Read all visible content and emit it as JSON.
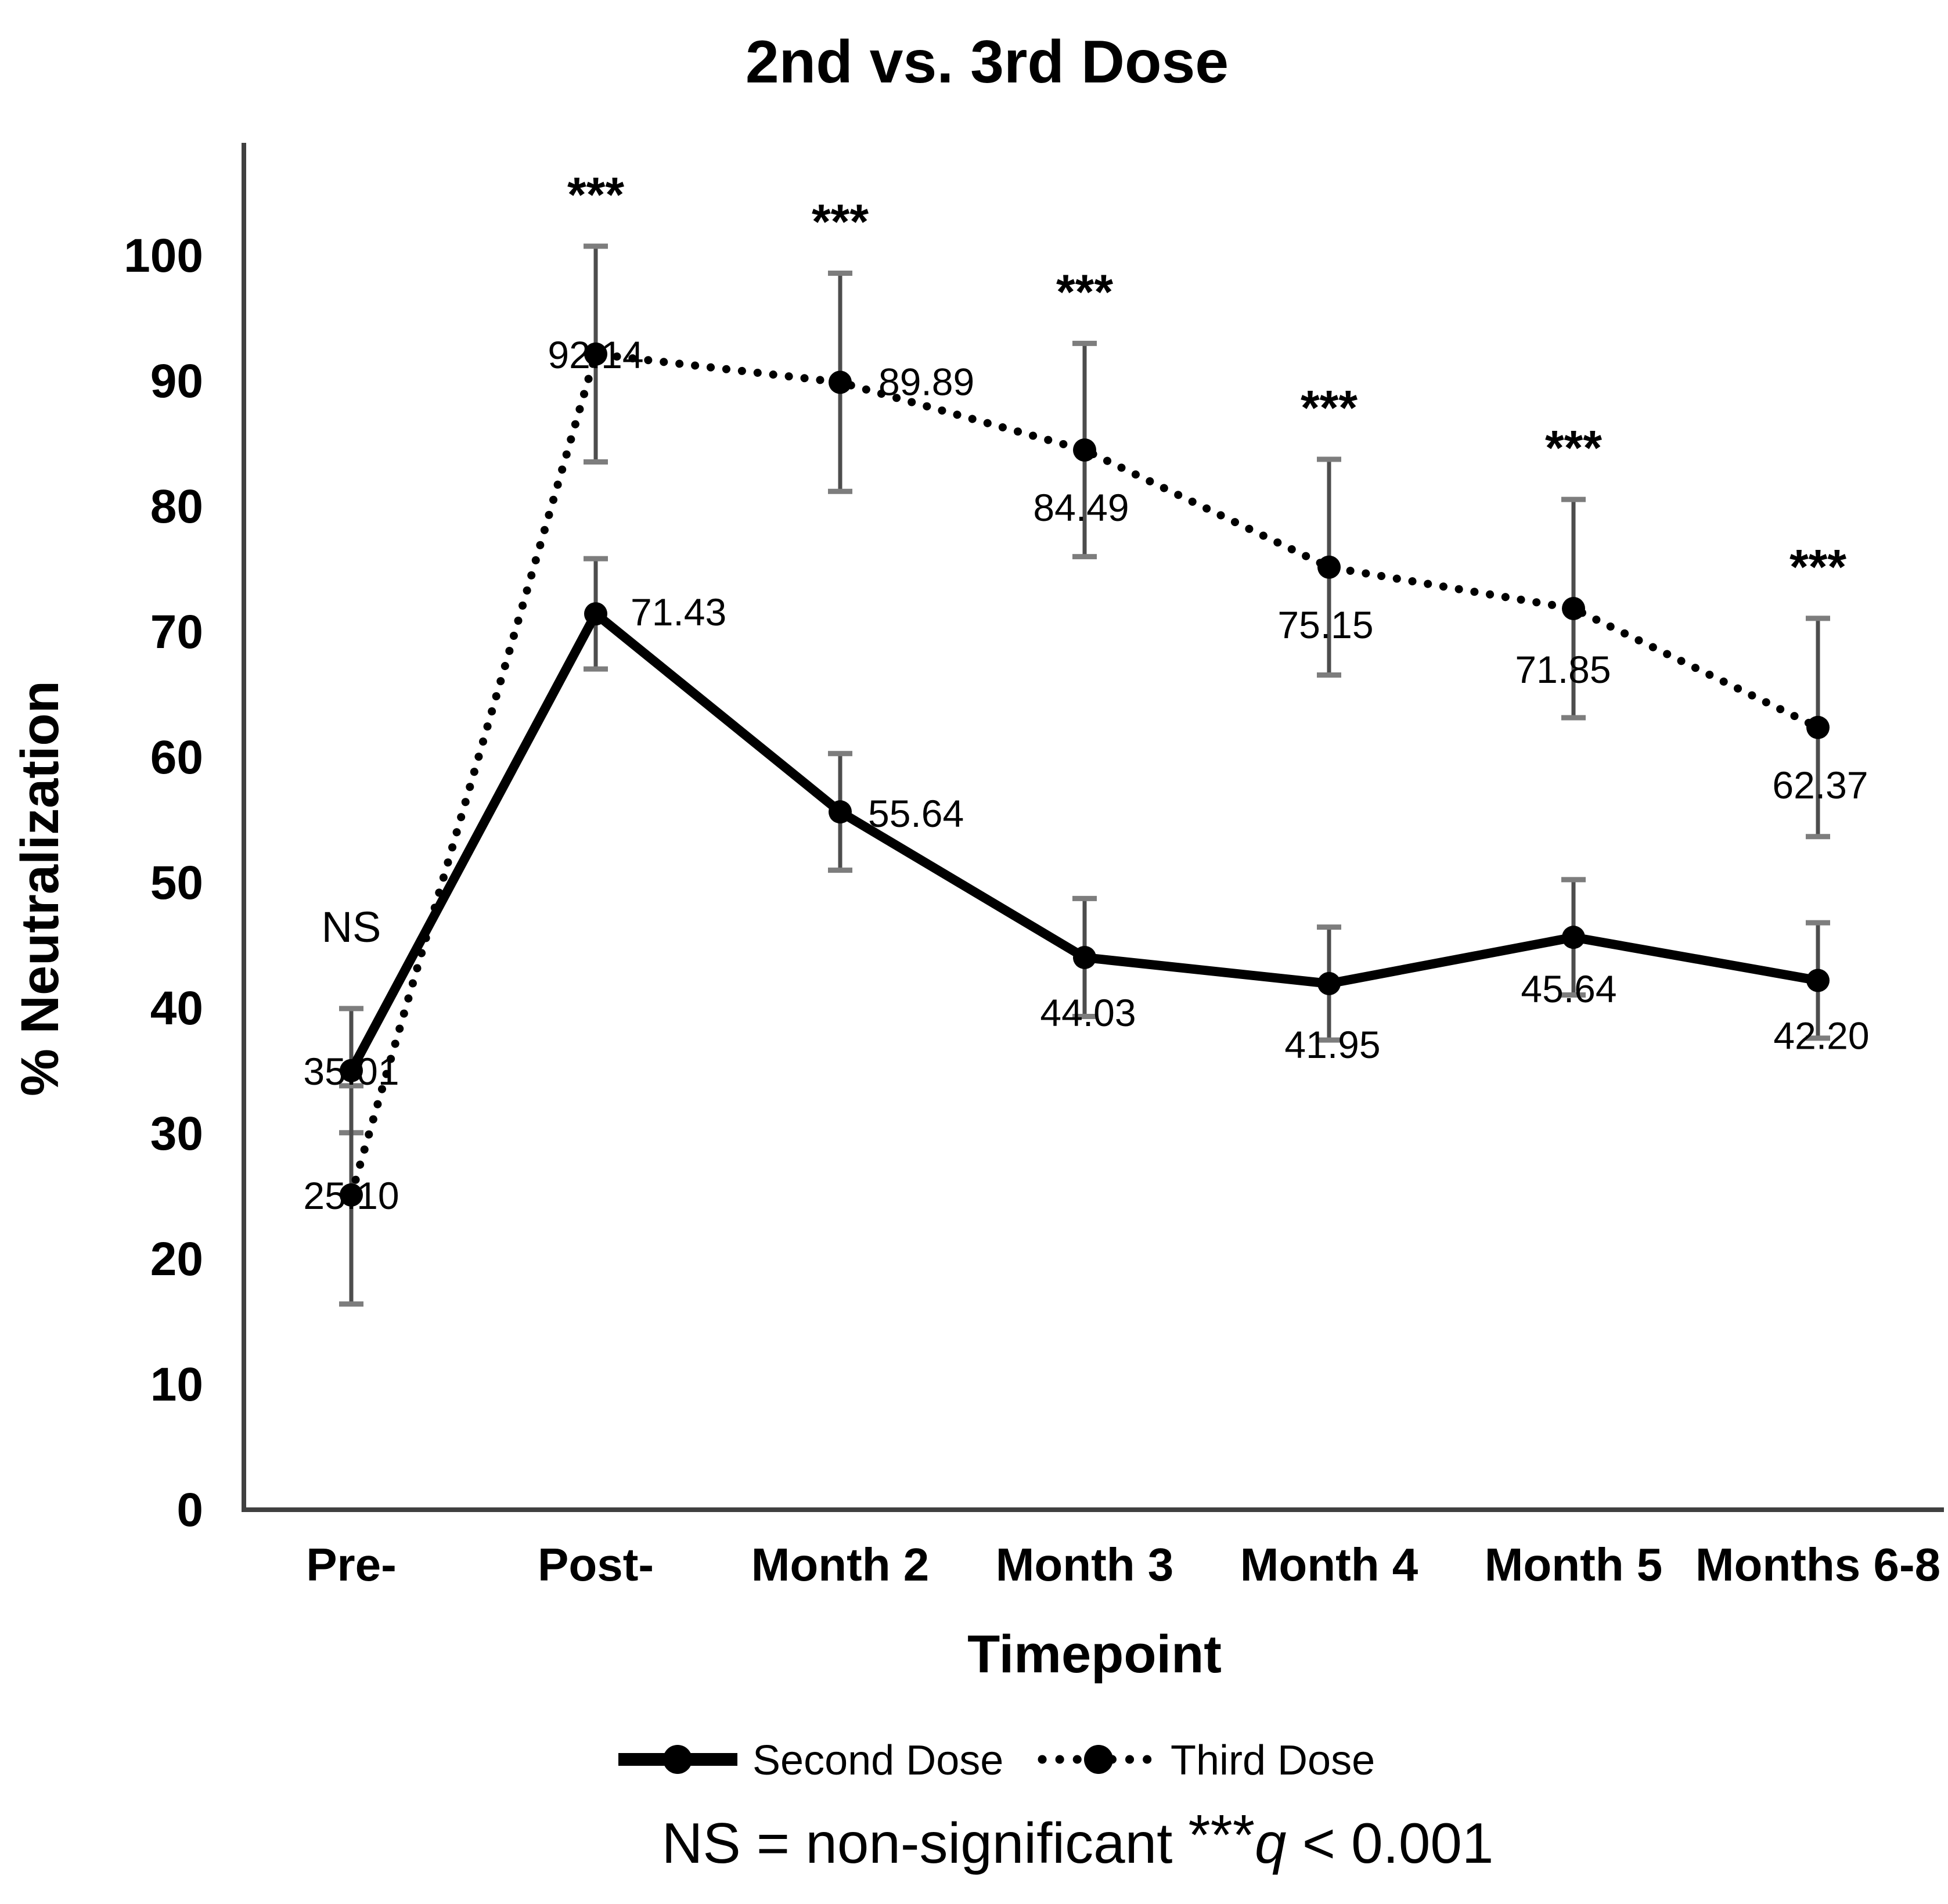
{
  "chart_data": {
    "type": "line",
    "title": "2nd vs. 3rd Dose",
    "xlabel": "Timepoint",
    "ylabel": "% Neutralization",
    "categories": [
      "Pre-",
      "Post-",
      "Month 2",
      "Month 3",
      "Month 4",
      "Month 5",
      "Months 6-8"
    ],
    "yticks": [
      "0",
      "10",
      "20",
      "30",
      "40",
      "50",
      "60",
      "70",
      "80",
      "90",
      "100"
    ],
    "ylim": [
      0,
      110
    ],
    "grid": false,
    "legend_position": "bottom",
    "series": [
      {
        "name": "Second Dose",
        "style": "solid",
        "values": [
          35.01,
          71.43,
          55.64,
          44.03,
          41.95,
          45.64,
          42.2
        ],
        "labels": [
          "35.01",
          "71.43",
          "55.64",
          "44.03",
          "41.95",
          "45.64",
          "42.20"
        ],
        "error": [
          4.95,
          4.4,
          4.65,
          4.7,
          4.5,
          4.6,
          4.6
        ]
      },
      {
        "name": "Third Dose",
        "style": "dotted",
        "values": [
          25.1,
          92.14,
          89.89,
          84.49,
          75.15,
          71.85,
          62.37
        ],
        "labels": [
          "25.10",
          "92.14",
          "89.89",
          "84.49",
          "75.15",
          "71.85",
          "62.37"
        ],
        "error": [
          8.7,
          8.6,
          8.7,
          8.5,
          8.6,
          8.7,
          8.7
        ]
      }
    ],
    "significance": [
      "NS",
      "***",
      "***",
      "***",
      "***",
      "***",
      "***"
    ],
    "footnote": {
      "prefix": "NS = non-significant ",
      "stars": "***",
      "q": "q",
      "suffix": " < 0.001"
    },
    "colors": {
      "line": "#000000",
      "error_bar": "#4d4d4d",
      "error_cap": "#7d7d7d",
      "axis": "#404040",
      "background": "#ffffff"
    }
  }
}
